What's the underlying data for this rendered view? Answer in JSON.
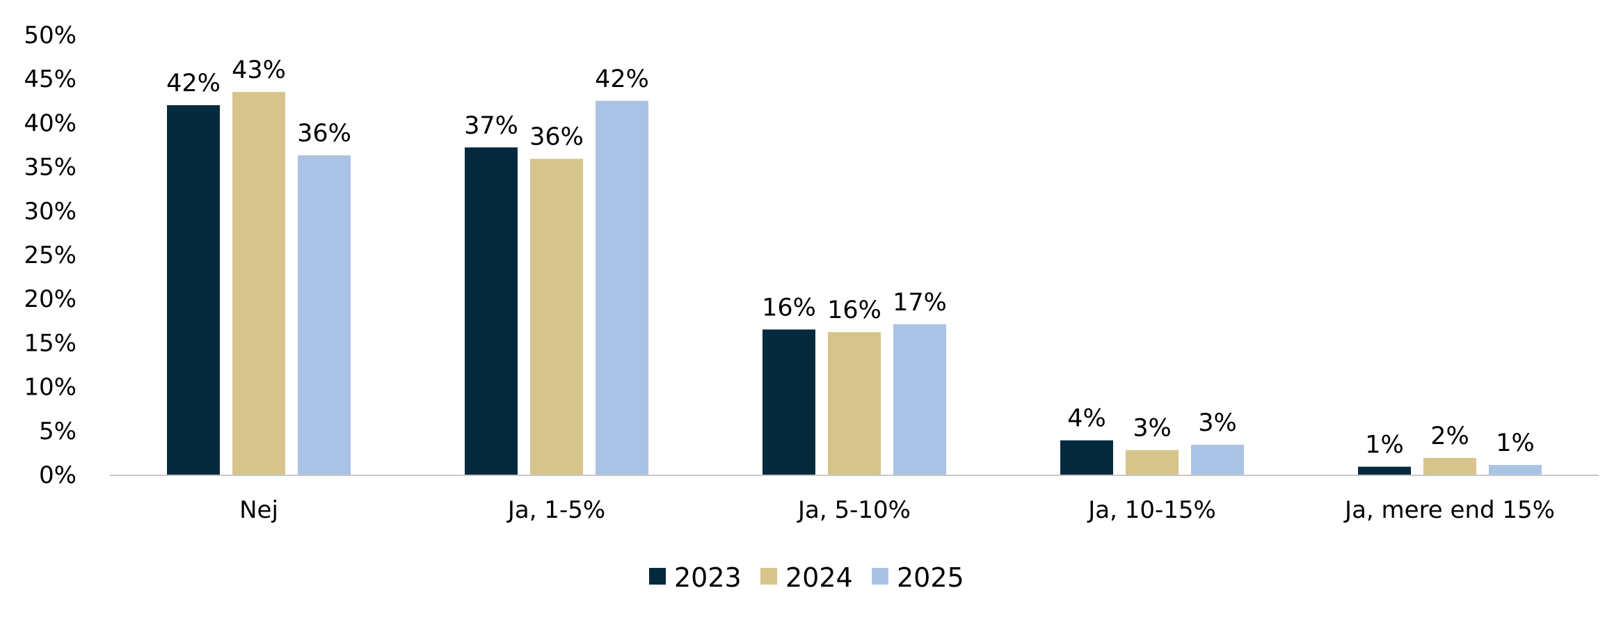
{
  "chart_data": {
    "type": "bar",
    "categories": [
      "Nej",
      "Ja, 1-5%",
      "Ja, 5-10%",
      "Ja, 10-15%",
      "Ja, mere end 15%"
    ],
    "series": [
      {
        "name": "2023",
        "color": "#062a3d",
        "values": [
          42,
          37.2,
          16.5,
          3.9,
          0.9
        ],
        "labels": [
          "42%",
          "37%",
          "16%",
          "4%",
          "1%"
        ]
      },
      {
        "name": "2024",
        "color": "#d6c48c",
        "values": [
          43.5,
          35.9,
          16.2,
          2.8,
          1.9
        ],
        "labels": [
          "43%",
          "36%",
          "16%",
          "3%",
          "2%"
        ]
      },
      {
        "name": "2025",
        "color": "#aac3e4",
        "values": [
          36.3,
          42.5,
          17.1,
          3.4,
          1.1
        ],
        "labels": [
          "36%",
          "42%",
          "17%",
          "3%",
          "1%"
        ]
      }
    ],
    "yticks": [
      "0%",
      "5%",
      "10%",
      "15%",
      "20%",
      "25%",
      "30%",
      "35%",
      "40%",
      "45%",
      "50%"
    ],
    "ylim": [
      0,
      50
    ],
    "grid": false,
    "legend_position": "bottom",
    "title": "",
    "xlabel": "",
    "ylabel": ""
  }
}
